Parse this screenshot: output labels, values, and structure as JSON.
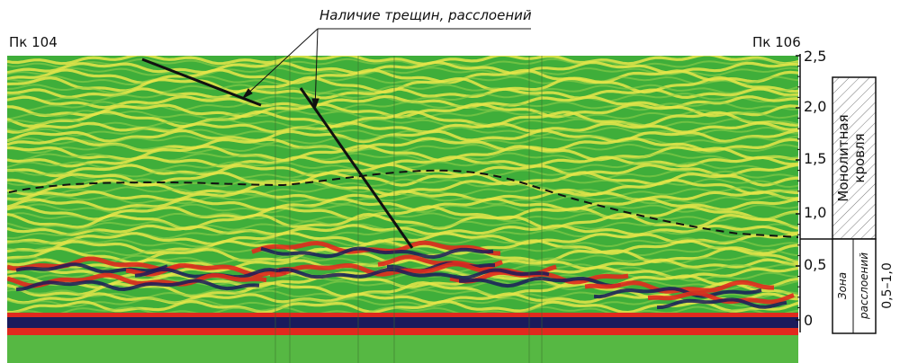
{
  "callout": "Наличие трещин, расслоений",
  "station_left": "Пк 104",
  "station_right": "Пк 106",
  "depth_ticks": [
    "2,5",
    "2,0",
    "1,5",
    "1,0",
    "0,5",
    "0"
  ],
  "zones": {
    "monolith": "Монолитная кровля",
    "monolith_line1": "Монолитная",
    "monolith_line2": "кровля",
    "delam_line1": "Зона",
    "delam_line2": "расслоений",
    "delam_range": "0,5–1,0"
  },
  "colors": {
    "background": "#3fae3a",
    "band_yellow": "#e8e64a",
    "band_red": "#e02a1e",
    "band_navy": "#1a1b5c"
  }
}
